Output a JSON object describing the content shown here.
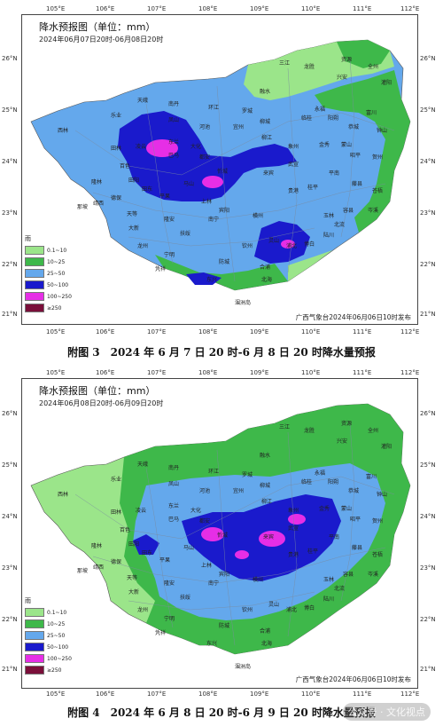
{
  "colors": {
    "r0_10": "#9be58a",
    "r10_25": "#3eb84a",
    "r25_50": "#64a8ec",
    "r50_100": "#1a1acc",
    "r100_250": "#e62ee6",
    "r250": "#7a0f3a"
  },
  "lon_ticks": [
    "105°E",
    "106°E",
    "107°E",
    "108°E",
    "109°E",
    "110°E",
    "111°E",
    "112°E"
  ],
  "lat_ticks": [
    "26°N",
    "25°N",
    "24°N",
    "23°N",
    "22°N",
    "21°N"
  ],
  "legend": {
    "title": "雨",
    "items": [
      {
        "label": "0.1~10",
        "color_key": "r0_10"
      },
      {
        "label": "10~25",
        "color_key": "r10_25"
      },
      {
        "label": "25~50",
        "color_key": "r25_50"
      },
      {
        "label": "50~100",
        "color_key": "r50_100"
      },
      {
        "label": "100~250",
        "color_key": "r100_250"
      },
      {
        "label": "≥250",
        "color_key": "r250"
      }
    ]
  },
  "maps": [
    {
      "title": "降水预报图（单位：mm）",
      "period": "2024年06月07日20时-06月08日20时",
      "issuer": "广西气象台2024年06月06日10时发布",
      "caption": "附图 3　2024 年 6 月 7 日 20 时-6 月 8 日 20 时降水量预报"
    },
    {
      "title": "降水预报图（单位：mm）",
      "period": "2024年06月08日20时-06月09日20时",
      "issuer": "广西气象台2024年06月06日10时发布",
      "caption": "附图 4　2024 年 6 月 8 日 20 时-6 月 9 日 20 时降水量预报"
    }
  ],
  "places": [
    "西林",
    "乐业",
    "南丹",
    "天峨",
    "环江",
    "罗城",
    "融水",
    "三江",
    "龙胜",
    "兴安",
    "全州",
    "资源",
    "灌阳",
    "永福",
    "临桂",
    "阳朔",
    "恭城",
    "富川",
    "钟山",
    "昭平",
    "贺州",
    "蒙山",
    "金秀",
    "象州",
    "柳城",
    "柳江",
    "宜州",
    "河池",
    "东兰",
    "巴马",
    "凌云",
    "田林",
    "隆林",
    "百色",
    "田阳",
    "田东",
    "平果",
    "德保",
    "靖西",
    "那坡",
    "天等",
    "大新",
    "隆安",
    "马山",
    "上林",
    "宾阳",
    "武宣",
    "来宾",
    "贵港",
    "桂平",
    "平南",
    "藤县",
    "苍梧",
    "岑溪",
    "容县",
    "北流",
    "玉林",
    "陆川",
    "博白",
    "浦北",
    "灵山",
    "钦州",
    "合浦",
    "北海",
    "防城",
    "东兴",
    "宁明",
    "凭祥",
    "龙州",
    "扶绥",
    "南宁",
    "横州",
    "忻城",
    "都安",
    "大化",
    "凤山",
    "涠洲岛"
  ],
  "watermark": "公众号 · 文化视点"
}
